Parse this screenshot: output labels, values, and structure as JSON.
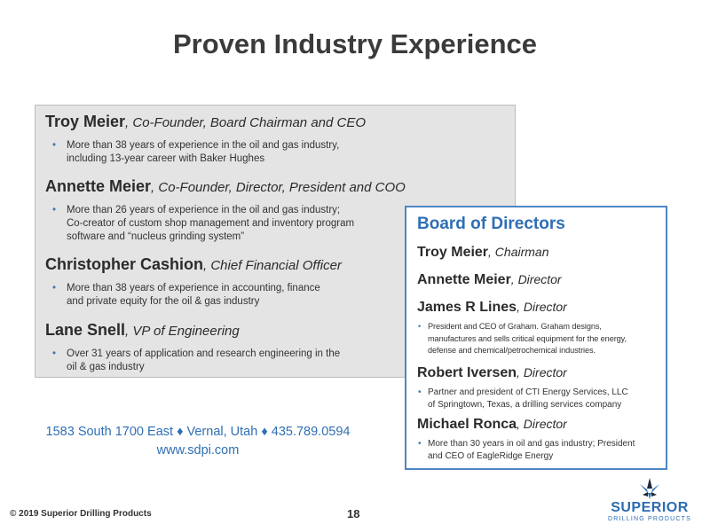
{
  "title": "Proven Industry Experience",
  "executives": [
    {
      "name": "Troy Meier",
      "role": ", Co-Founder, Board Chairman and CEO",
      "bullet_lines": [
        "More than 38 years of experience in the oil and gas industry,",
        "including 13-year career with Baker Hughes"
      ]
    },
    {
      "name": "Annette Meier",
      "role": ", Co-Founder, Director, President and COO",
      "bullet_lines": [
        "More than 26 years of experience in the oil and gas industry;",
        "Co-creator of custom shop management and inventory program",
        "software and “nucleus grinding system”"
      ]
    },
    {
      "name": "Christopher Cashion",
      "role": ", Chief Financial Officer",
      "bullet_lines": [
        "More than 38 years of experience in accounting, finance",
        "and private equity for the oil & gas industry"
      ]
    },
    {
      "name": "Lane Snell",
      "role": ", VP of Engineering",
      "bullet_lines": [
        "Over 31 years of application and research engineering in the",
        "oil & gas industry"
      ]
    }
  ],
  "board": {
    "title": "Board of Directors",
    "members": [
      {
        "name": "Troy Meier",
        "role": ", Chairman",
        "bullet_lines": []
      },
      {
        "name": "Annette Meier",
        "role": ", Director",
        "bullet_lines": []
      },
      {
        "name": "James R Lines",
        "role": ", Director",
        "bullet_lines": [
          "President and CEO of Graham. Graham designs,",
          "manufactures and sells critical equipment for the energy,",
          "defense and chemical/petrochemical industries."
        ]
      },
      {
        "name": "Robert Iversen",
        "role": ", Director",
        "bullet_lines": [
          "Partner and president of CTI Energy Services, LLC",
          "of Springtown, Texas, a drilling services company"
        ]
      },
      {
        "name": "Michael Ronca",
        "role": ", Director",
        "bullet_lines": [
          "More than 30 years in oil and gas industry; President",
          "and CEO of EagleRidge Energy"
        ]
      }
    ]
  },
  "contact": {
    "address": "1583 South 1700 East ♦ Vernal, Utah ♦  435.789.0594",
    "website": "www.sdpi.com"
  },
  "footer": {
    "copyright": "© 2019 Superior Drilling Products",
    "page_number": "18"
  },
  "logo": {
    "brand": "SUPERIOR",
    "subtitle": "DRILLING PRODUCTS",
    "icon": "drill-bit-icon"
  },
  "colors": {
    "accent_blue": "#2f6fb4",
    "box_gray": "#e4e4e4",
    "board_border": "#4d86c4"
  }
}
